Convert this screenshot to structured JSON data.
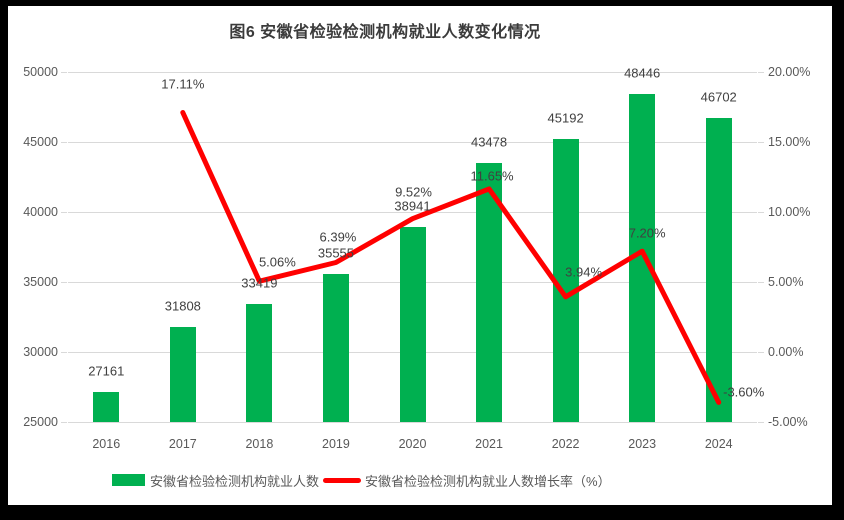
{
  "title": "图6  安徽省检验检测机构就业人数变化情况",
  "legend": {
    "bar_label": "安徽省检验检测机构就业人数",
    "line_label": "安徽省检验检测机构就业人数增长率（%）"
  },
  "colors": {
    "bar": "#00B050",
    "line": "#FF0000",
    "grid": "#D9D9D9",
    "axis_text": "#595959",
    "label_text": "#404040",
    "background": "#FFFFFF",
    "frame": "#000000"
  },
  "chart_data": {
    "type": "bar",
    "subtype": "combo-bar-line",
    "title": "图6  安徽省检验检测机构就业人数变化情况",
    "categories": [
      "2016",
      "2017",
      "2018",
      "2019",
      "2020",
      "2021",
      "2022",
      "2023",
      "2024"
    ],
    "series": [
      {
        "name": "安徽省检验检测机构就业人数",
        "type": "bar",
        "axis": "left",
        "color": "#00B050",
        "values": [
          27161,
          31808,
          33419,
          35555,
          38941,
          43478,
          45192,
          48446,
          46702
        ],
        "labels": [
          "27161",
          "31808",
          "33419",
          "35555",
          "38941",
          "43478",
          "45192",
          "48446",
          "46702"
        ]
      },
      {
        "name": "安徽省检验检测机构就业人数增长率（%）",
        "type": "line",
        "axis": "right",
        "color": "#FF0000",
        "values": [
          null,
          17.11,
          5.06,
          6.39,
          9.52,
          11.65,
          3.94,
          7.2,
          -3.6
        ],
        "labels": [
          null,
          "17.11%",
          "5.06%",
          "6.39%",
          "9.52%",
          "11.65%",
          "3.94%",
          "7.20%",
          "-3.60%"
        ]
      }
    ],
    "left_axis": {
      "min": 25000,
      "max": 50000,
      "tick_labels": [
        "50000",
        "45000",
        "40000",
        "35000",
        "30000",
        "25000"
      ]
    },
    "right_axis": {
      "min": -5,
      "max": 20,
      "tick_labels": [
        "20.00%",
        "15.00%",
        "10.00%",
        "5.00%",
        "0.00%",
        "-5.00%"
      ]
    },
    "grid": true,
    "legend_position": "bottom"
  }
}
